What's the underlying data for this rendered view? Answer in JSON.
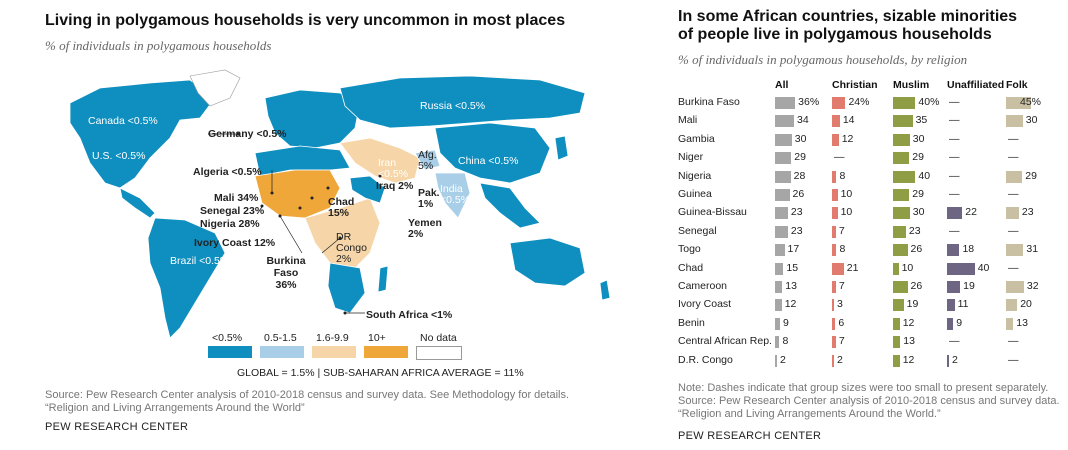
{
  "left": {
    "title": "Living in polygamous households is very uncommon in most places",
    "subtitle": "% of individuals in polygamous households",
    "labels": {
      "canada": "Canada <0.5%",
      "us": "U.S. <0.5%",
      "germany": "Germany <0.5%",
      "russia": "Russia <0.5%",
      "china": "China <0.5%",
      "algeria": "Algeria <0.5%",
      "iran": "Iran <0.5%",
      "afg": "Afg. 5%",
      "iraq": "Iraq 2%",
      "pak": "Pak. 1%",
      "india": "India <0.5%",
      "mali": "Mali 34%",
      "senegal": "Senegal 23%",
      "nigeria": "Nigeria 28%",
      "chad": "Chad 15%",
      "drcongo": "DR Congo 2%",
      "yemen": "Yemen 2%",
      "ivory": "Ivory Coast 12%",
      "burkina": "Burkina Faso 36%",
      "brazil": "Brazil <0.5%",
      "southafrica": "South Africa <1%"
    },
    "legend": [
      {
        "label": "<0.5%",
        "color": "#0f8fbf"
      },
      {
        "label": "0.5-1.5",
        "color": "#a9cfe8"
      },
      {
        "label": "1.6-9.9",
        "color": "#f6d6a8"
      },
      {
        "label": "10+",
        "color": "#efa73a"
      },
      {
        "label": "No data",
        "color": "#ffffff"
      }
    ],
    "global": "GLOBAL = 1.5%  |  SUB-SAHARAN AFRICA AVERAGE = 11%",
    "source": "Source: Pew Research Center analysis of 2010-2018 census and survey data. See Methodology for details.",
    "source2": "“Religion and Living Arrangements Around the World”",
    "brand": "PEW RESEARCH CENTER"
  },
  "right": {
    "title1": "In some African countries, sizable minorities",
    "title2": "of people live in polygamous households",
    "subtitle": "% of individuals in polygamous households, by religion",
    "note1": "Note: Dashes indicate that group sizes were too small to present separately.",
    "note2": "Source: Pew Research Center analysis of 2010-2018 census and survey data.",
    "note3": "“Religion and Living Arrangements Around the World.”",
    "brand": "PEW RESEARCH CENTER"
  },
  "chart_data": {
    "type": "bar",
    "title": "In some African countries, sizable minorities of people live in polygamous households",
    "subtitle": "% of individuals in polygamous households, by religion",
    "categories": [
      "Burkina Faso",
      "Mali",
      "Gambia",
      "Niger",
      "Nigeria",
      "Guinea",
      "Guinea-Bissau",
      "Senegal",
      "Togo",
      "Chad",
      "Cameroon",
      "Ivory Coast",
      "Benin",
      "Central African Rep.",
      "D.R. Congo"
    ],
    "series": [
      {
        "name": "All",
        "color": "#a6a6a6",
        "values": [
          36,
          34,
          30,
          29,
          28,
          26,
          23,
          23,
          17,
          15,
          13,
          12,
          9,
          8,
          2
        ],
        "labels": [
          "36%",
          "34",
          "30",
          "29",
          "28",
          "26",
          "23",
          "23",
          "17",
          "15",
          "13",
          "12",
          "9",
          "8",
          "2"
        ]
      },
      {
        "name": "Christian",
        "color": "#e07b6e",
        "values": [
          24,
          14,
          12,
          null,
          8,
          10,
          10,
          7,
          8,
          21,
          7,
          3,
          6,
          7,
          2
        ],
        "labels": [
          "24%",
          "14",
          "12",
          "—",
          "8",
          "10",
          "10",
          "7",
          "8",
          "21",
          "7",
          "3",
          "6",
          "7",
          "2"
        ]
      },
      {
        "name": "Muslim",
        "color": "#8f9d45",
        "values": [
          40,
          35,
          30,
          29,
          40,
          29,
          30,
          23,
          26,
          10,
          26,
          19,
          12,
          13,
          12
        ],
        "labels": [
          "40%",
          "35",
          "30",
          "29",
          "40",
          "29",
          "30",
          "23",
          "26",
          "10",
          "26",
          "19",
          "12",
          "13",
          "12"
        ]
      },
      {
        "name": "Unaffiliated",
        "color": "#6e6582",
        "values": [
          null,
          null,
          null,
          null,
          null,
          null,
          22,
          null,
          18,
          40,
          19,
          11,
          9,
          null,
          2
        ],
        "labels": [
          "—",
          "—",
          "—",
          "—",
          "—",
          "—",
          "22",
          "—",
          "18",
          "40",
          "19",
          "11",
          "9",
          "—",
          "2"
        ]
      },
      {
        "name": "Folk",
        "color": "#c9c0a3",
        "values": [
          45,
          30,
          null,
          null,
          29,
          null,
          23,
          null,
          31,
          null,
          32,
          20,
          13,
          null,
          null
        ],
        "labels": [
          "45%",
          "30",
          "—",
          "—",
          "29",
          "—",
          "23",
          "—",
          "31",
          "—",
          "32",
          "20",
          "13",
          "—",
          "—"
        ]
      }
    ]
  }
}
